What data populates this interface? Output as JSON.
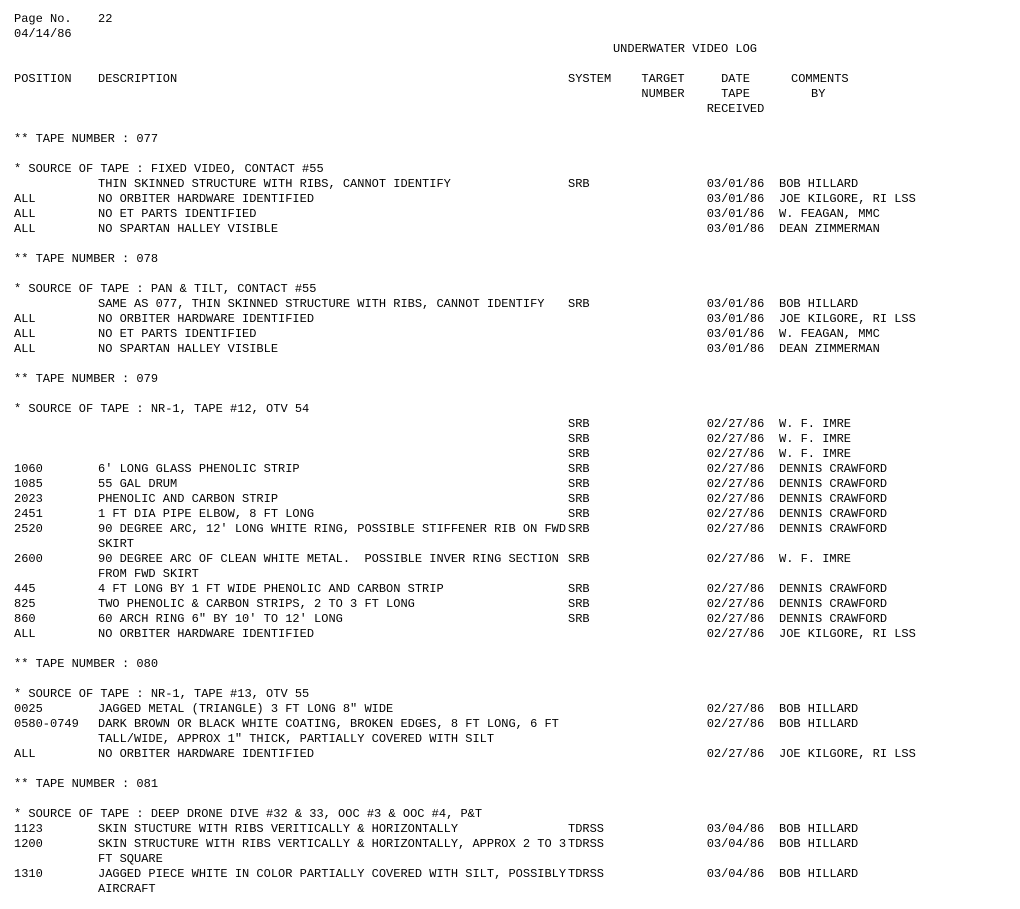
{
  "header": {
    "page_label": "Page No.",
    "page_no": "22",
    "date": "04/14/86",
    "title": "UNDERWATER VIDEO LOG",
    "cols": {
      "position": "POSITION",
      "description": "DESCRIPTION",
      "system": "SYSTEM",
      "target1": "TARGET",
      "target2": "NUMBER",
      "date1": "DATE",
      "date2": "TAPE",
      "date3": "RECEIVED",
      "comments1": "COMMENTS",
      "comments2": "BY"
    }
  },
  "tape_label": "** TAPE NUMBER   :",
  "source_label": "* SOURCE OF TAPE :",
  "tapes": [
    {
      "number": "077",
      "source": "FIXED VIDEO, CONTACT #55",
      "rows": [
        {
          "pos": "",
          "desc": "THIN SKINNED STRUCTURE WITH RIBS, CANNOT IDENTIFY",
          "sys": "SRB",
          "tgt": "",
          "date": "03/01/86",
          "com": "BOB HILLARD"
        },
        {
          "pos": "ALL",
          "desc": "NO ORBITER HARDWARE IDENTIFIED",
          "sys": "",
          "tgt": "",
          "date": "03/01/86",
          "com": "JOE KILGORE, RI LSS"
        },
        {
          "pos": "ALL",
          "desc": "NO ET PARTS IDENTIFIED",
          "sys": "",
          "tgt": "",
          "date": "03/01/86",
          "com": "W. FEAGAN, MMC"
        },
        {
          "pos": "ALL",
          "desc": "NO SPARTAN HALLEY VISIBLE",
          "sys": "",
          "tgt": "",
          "date": "03/01/86",
          "com": "DEAN ZIMMERMAN"
        }
      ]
    },
    {
      "number": "078",
      "source": "PAN & TILT, CONTACT #55",
      "rows": [
        {
          "pos": "",
          "desc": "SAME AS 077, THIN SKINNED STRUCTURE WITH RIBS, CANNOT IDENTIFY",
          "sys": "SRB",
          "tgt": "",
          "date": "03/01/86",
          "com": "BOB HILLARD"
        },
        {
          "pos": "ALL",
          "desc": "NO ORBITER HARDWARE IDENTIFIED",
          "sys": "",
          "tgt": "",
          "date": "03/01/86",
          "com": "JOE KILGORE, RI LSS"
        },
        {
          "pos": "ALL",
          "desc": "NO ET PARTS IDENTIFIED",
          "sys": "",
          "tgt": "",
          "date": "03/01/86",
          "com": "W. FEAGAN, MMC"
        },
        {
          "pos": "ALL",
          "desc": "NO SPARTAN HALLEY VISIBLE",
          "sys": "",
          "tgt": "",
          "date": "03/01/86",
          "com": "DEAN ZIMMERMAN"
        }
      ]
    },
    {
      "number": "079",
      "source": "NR-1, TAPE #12, OTV 54",
      "rows": [
        {
          "pos": "",
          "desc": "",
          "sys": "SRB",
          "tgt": "",
          "date": "02/27/86",
          "com": "W. F. IMRE"
        },
        {
          "pos": "",
          "desc": "",
          "sys": "SRB",
          "tgt": "",
          "date": "02/27/86",
          "com": "W. F. IMRE"
        },
        {
          "pos": "",
          "desc": "",
          "sys": "SRB",
          "tgt": "",
          "date": "02/27/86",
          "com": "W. F. IMRE"
        },
        {
          "pos": "1060",
          "desc": "6' LONG GLASS PHENOLIC STRIP",
          "sys": "SRB",
          "tgt": "",
          "date": "02/27/86",
          "com": "DENNIS CRAWFORD"
        },
        {
          "pos": "1085",
          "desc": "55 GAL DRUM",
          "sys": "SRB",
          "tgt": "",
          "date": "02/27/86",
          "com": "DENNIS CRAWFORD"
        },
        {
          "pos": "2023",
          "desc": "PHENOLIC AND CARBON STRIP",
          "sys": "SRB",
          "tgt": "",
          "date": "02/27/86",
          "com": "DENNIS CRAWFORD"
        },
        {
          "pos": "2451",
          "desc": "1 FT DIA PIPE ELBOW, 8 FT LONG",
          "sys": "SRB",
          "tgt": "",
          "date": "02/27/86",
          "com": "DENNIS CRAWFORD"
        },
        {
          "pos": "2520",
          "desc": "90 DEGREE ARC, 12' LONG WHITE RING, POSSIBLE STIFFENER RIB ON FWD SKIRT",
          "sys": "SRB",
          "tgt": "",
          "date": "02/27/86",
          "com": "DENNIS CRAWFORD"
        },
        {
          "pos": "2600",
          "desc": "90 DEGREE ARC OF CLEAN WHITE METAL.  POSSIBLE INVER RING SECTION FROM FWD SKIRT",
          "sys": "SRB",
          "tgt": "",
          "date": "02/27/86",
          "com": "W. F. IMRE"
        },
        {
          "pos": "445",
          "desc": "4 FT LONG BY 1 FT WIDE PHENOLIC AND CARBON STRIP",
          "sys": "SRB",
          "tgt": "",
          "date": "02/27/86",
          "com": "DENNIS CRAWFORD"
        },
        {
          "pos": "825",
          "desc": "TWO PHENOLIC & CARBON STRIPS, 2 TO 3 FT LONG",
          "sys": "SRB",
          "tgt": "",
          "date": "02/27/86",
          "com": "DENNIS CRAWFORD"
        },
        {
          "pos": "860",
          "desc": "60 ARCH RING 6\" BY 10' TO 12' LONG",
          "sys": "SRB",
          "tgt": "",
          "date": "02/27/86",
          "com": "DENNIS CRAWFORD"
        },
        {
          "pos": "ALL",
          "desc": "NO ORBITER HARDWARE IDENTIFIED",
          "sys": "",
          "tgt": "",
          "date": "02/27/86",
          "com": "JOE KILGORE, RI LSS"
        }
      ]
    },
    {
      "number": "080",
      "source": "NR-1, TAPE #13, OTV 55",
      "rows": [
        {
          "pos": "0025",
          "desc": "JAGGED METAL (TRIANGLE) 3 FT LONG 8\" WIDE",
          "sys": "",
          "tgt": "",
          "date": "02/27/86",
          "com": "BOB HILLARD"
        },
        {
          "pos": "0580-0749",
          "desc": "DARK BROWN OR BLACK WHITE COATING, BROKEN EDGES, 8 FT LONG, 6 FT TALL/WIDE, APPROX 1\" THICK, PARTIALLY COVERED WITH SILT",
          "sys": "",
          "tgt": "",
          "date": "02/27/86",
          "com": "BOB HILLARD"
        },
        {
          "pos": "ALL",
          "desc": "NO ORBITER HARDWARE IDENTIFIED",
          "sys": "",
          "tgt": "",
          "date": "02/27/86",
          "com": "JOE KILGORE, RI LSS"
        }
      ]
    },
    {
      "number": "081",
      "source": "DEEP DRONE DIVE #32 & 33, OOC #3 & OOC #4, P&T",
      "rows": [
        {
          "pos": "1123",
          "desc": "SKIN STUCTURE WITH RIBS VERITICALLY & HORIZONTALLY",
          "sys": "TDRSS",
          "tgt": "",
          "date": "03/04/86",
          "com": "BOB HILLARD"
        },
        {
          "pos": "1200",
          "desc": "SKIN STRUCTURE WITH RIBS VERTICALLY & HORIZONTALLY, APPROX 2 TO 3 FT SQUARE",
          "sys": "TDRSS",
          "tgt": "",
          "date": "03/04/86",
          "com": "BOB HILLARD"
        },
        {
          "pos": "1310",
          "desc": "JAGGED PIECE WHITE IN COLOR PARTIALLY COVERED WITH SILT, POSSIBLY AIRCRAFT",
          "sys": "TDRSS",
          "tgt": "",
          "date": "03/04/86",
          "com": "BOB HILLARD"
        }
      ]
    }
  ]
}
